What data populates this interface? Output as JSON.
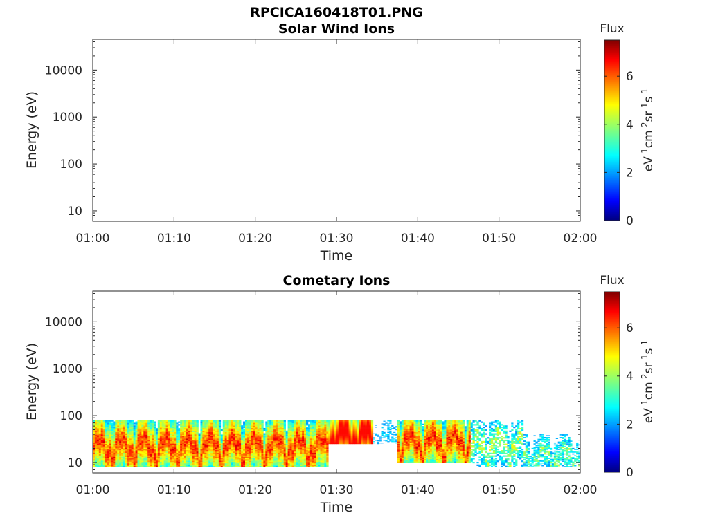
{
  "figure_title": "RPCICA160418T01.PNG",
  "colors": {
    "colormap": [
      "#00007f",
      "#0000ff",
      "#007fff",
      "#00ffff",
      "#7fff7f",
      "#ffff00",
      "#ff7f00",
      "#ff0000",
      "#7f0000"
    ],
    "axis": "#262626"
  },
  "chart_data": [
    {
      "type": "heatmap",
      "title": "Solar Wind Ions",
      "xlabel": "Time",
      "ylabel": "Energy (eV)",
      "x_ticks": [
        "01:00",
        "01:10",
        "01:20",
        "01:30",
        "01:40",
        "01:50",
        "02:00"
      ],
      "x_range_minutes": [
        0,
        60
      ],
      "y_scale": "log",
      "y_ticks": [
        "10",
        "100",
        "1000",
        "10000"
      ],
      "ylim": [
        6,
        45000
      ],
      "colorbar": {
        "title": "Flux",
        "label": "eV-1cm-2sr-1s-1",
        "ticks": [
          "0",
          "2",
          "4",
          "6"
        ],
        "range": [
          0,
          7.5
        ]
      },
      "segments": []
    },
    {
      "type": "heatmap",
      "title": "Cometary Ions",
      "xlabel": "Time",
      "ylabel": "Energy (eV)",
      "x_ticks": [
        "01:00",
        "01:10",
        "01:20",
        "01:30",
        "01:40",
        "01:50",
        "02:00"
      ],
      "x_range_minutes": [
        0,
        60
      ],
      "y_scale": "log",
      "y_ticks": [
        "10",
        "100",
        "1000",
        "10000"
      ],
      "ylim": [
        6,
        45000
      ],
      "colorbar": {
        "title": "Flux",
        "label": "eV-1cm-2sr-1s-1",
        "ticks": [
          "0",
          "2",
          "4",
          "6"
        ],
        "range": [
          0,
          7.5
        ]
      },
      "segments": [
        {
          "t_min": 0,
          "t_max": 29,
          "e_min": 8,
          "e_max": 80,
          "peak_energy": 28,
          "peak_flux": 7.0,
          "pattern": "dense-striped"
        },
        {
          "t_min": 29,
          "t_max": 34.5,
          "e_min": 25,
          "e_max": 80,
          "peak_energy": 45,
          "peak_flux": 6.5,
          "pattern": "uniform-band"
        },
        {
          "t_min": 34.5,
          "t_max": 37.5,
          "e_min": 25,
          "e_max": 80,
          "peak_energy": 40,
          "peak_flux": 3.0,
          "pattern": "faint"
        },
        {
          "t_min": 37.5,
          "t_max": 46.5,
          "e_min": 10,
          "e_max": 80,
          "peak_energy": 35,
          "peak_flux": 7.0,
          "pattern": "dense-striped"
        },
        {
          "t_min": 46.5,
          "t_max": 53,
          "e_min": 8,
          "e_max": 80,
          "peak_energy": 30,
          "peak_flux": 5.0,
          "pattern": "patchy"
        },
        {
          "t_min": 53,
          "t_max": 60,
          "e_min": 8,
          "e_max": 40,
          "peak_energy": 16,
          "peak_flux": 4.5,
          "pattern": "patchy"
        }
      ]
    }
  ]
}
